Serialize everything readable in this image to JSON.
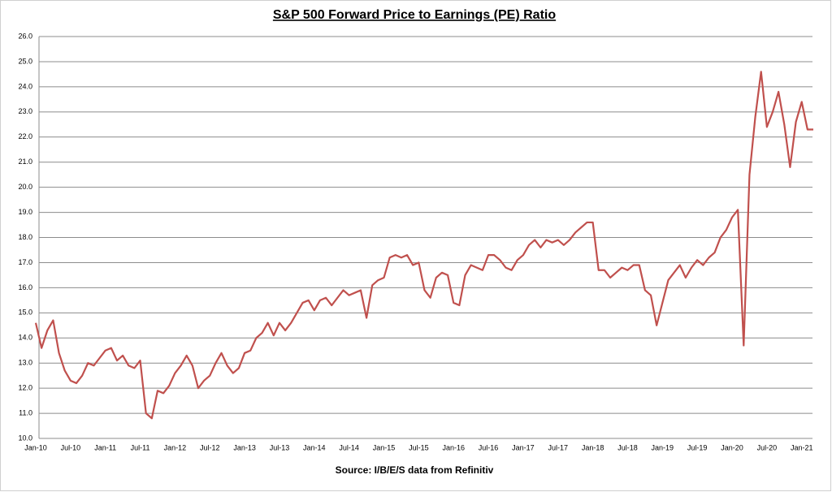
{
  "chart_data": {
    "type": "line",
    "title": "S&P 500 Forward Price to Earnings (PE) Ratio",
    "source": "Source: I/B/E/S data from Refinitiv",
    "color": "#c0504d",
    "grid": true,
    "categories": [
      "Jan-10",
      null,
      null,
      null,
      null,
      null,
      "Jul-10",
      null,
      null,
      null,
      null,
      null,
      "Jan-11",
      null,
      null,
      null,
      null,
      null,
      "Jul-11",
      null,
      null,
      null,
      null,
      null,
      "Jan-12",
      null,
      null,
      null,
      null,
      null,
      "Jul-12",
      null,
      null,
      null,
      null,
      null,
      "Jan-13",
      null,
      null,
      null,
      null,
      null,
      "Jul-13",
      null,
      null,
      null,
      null,
      null,
      "Jan-14",
      null,
      null,
      null,
      null,
      null,
      "Jul-14",
      null,
      null,
      null,
      null,
      null,
      "Jan-15",
      null,
      null,
      null,
      null,
      null,
      "Jul-15",
      null,
      null,
      null,
      null,
      null,
      "Jan-16",
      null,
      null,
      null,
      null,
      null,
      "Jul-16",
      null,
      null,
      null,
      null,
      null,
      "Jan-17",
      null,
      null,
      null,
      null,
      null,
      "Jul-17",
      null,
      null,
      null,
      null,
      null,
      "Jan-18",
      null,
      null,
      null,
      null,
      null,
      "Jul-18",
      null,
      null,
      null,
      null,
      null,
      "Jan-19",
      null,
      null,
      null,
      null,
      null,
      "Jul-19",
      null,
      null,
      null,
      null,
      null,
      "Jan-20",
      null,
      null,
      null,
      null,
      null,
      "Jul-20",
      null,
      null,
      null,
      null,
      null,
      "Jan-21",
      null,
      null
    ],
    "values": [
      14.6,
      13.6,
      14.3,
      14.7,
      13.4,
      12.7,
      12.3,
      12.2,
      12.5,
      13.0,
      12.9,
      13.2,
      13.5,
      13.6,
      13.1,
      13.3,
      12.9,
      12.8,
      13.1,
      11.0,
      10.8,
      11.9,
      11.8,
      12.1,
      12.6,
      12.9,
      13.3,
      12.9,
      12.0,
      12.3,
      12.5,
      13.0,
      13.4,
      12.9,
      12.6,
      12.8,
      13.4,
      13.5,
      14.0,
      14.2,
      14.6,
      14.1,
      14.6,
      14.3,
      14.6,
      15.0,
      15.4,
      15.5,
      15.1,
      15.5,
      15.6,
      15.3,
      15.6,
      15.9,
      15.7,
      15.8,
      15.9,
      14.8,
      16.1,
      16.3,
      16.4,
      17.2,
      17.3,
      17.2,
      17.3,
      16.9,
      17.0,
      15.9,
      15.6,
      16.4,
      16.6,
      16.5,
      15.4,
      15.3,
      16.5,
      16.9,
      16.8,
      16.7,
      17.3,
      17.3,
      17.1,
      16.8,
      16.7,
      17.1,
      17.3,
      17.7,
      17.9,
      17.6,
      17.9,
      17.8,
      17.9,
      17.7,
      17.9,
      18.2,
      18.4,
      18.6,
      18.6,
      16.7,
      16.7,
      16.4,
      16.6,
      16.8,
      16.7,
      16.9,
      16.9,
      15.9,
      15.7,
      14.5,
      15.4,
      16.3,
      16.6,
      16.9,
      16.4,
      16.8,
      17.1,
      16.9,
      17.2,
      17.4,
      18.0,
      18.3,
      18.8,
      19.1,
      13.7,
      20.5,
      22.8,
      24.6,
      22.4,
      23.0,
      23.8,
      22.5,
      20.8,
      22.6,
      23.4,
      22.3,
      22.3
    ],
    "ylim": [
      10,
      26
    ],
    "yticks": [
      {
        "value": 10,
        "label": "10.0"
      },
      {
        "value": 11,
        "label": "11.0"
      },
      {
        "value": 12,
        "label": "12.0"
      },
      {
        "value": 13,
        "label": "13.0"
      },
      {
        "value": 14,
        "label": "14.0"
      },
      {
        "value": 15,
        "label": "15.0"
      },
      {
        "value": 16,
        "label": "16.0"
      },
      {
        "value": 17,
        "label": "17.0"
      },
      {
        "value": 18,
        "label": "18.0"
      },
      {
        "value": 19,
        "label": "19.0"
      },
      {
        "value": 20,
        "label": "20.0"
      },
      {
        "value": 21,
        "label": "21.0"
      },
      {
        "value": 22,
        "label": "22.0"
      },
      {
        "value": 23,
        "label": "23.0"
      },
      {
        "value": 24,
        "label": "24.0"
      },
      {
        "value": 25,
        "label": "25.0"
      },
      {
        "value": 26,
        "label": "26.0"
      }
    ]
  }
}
